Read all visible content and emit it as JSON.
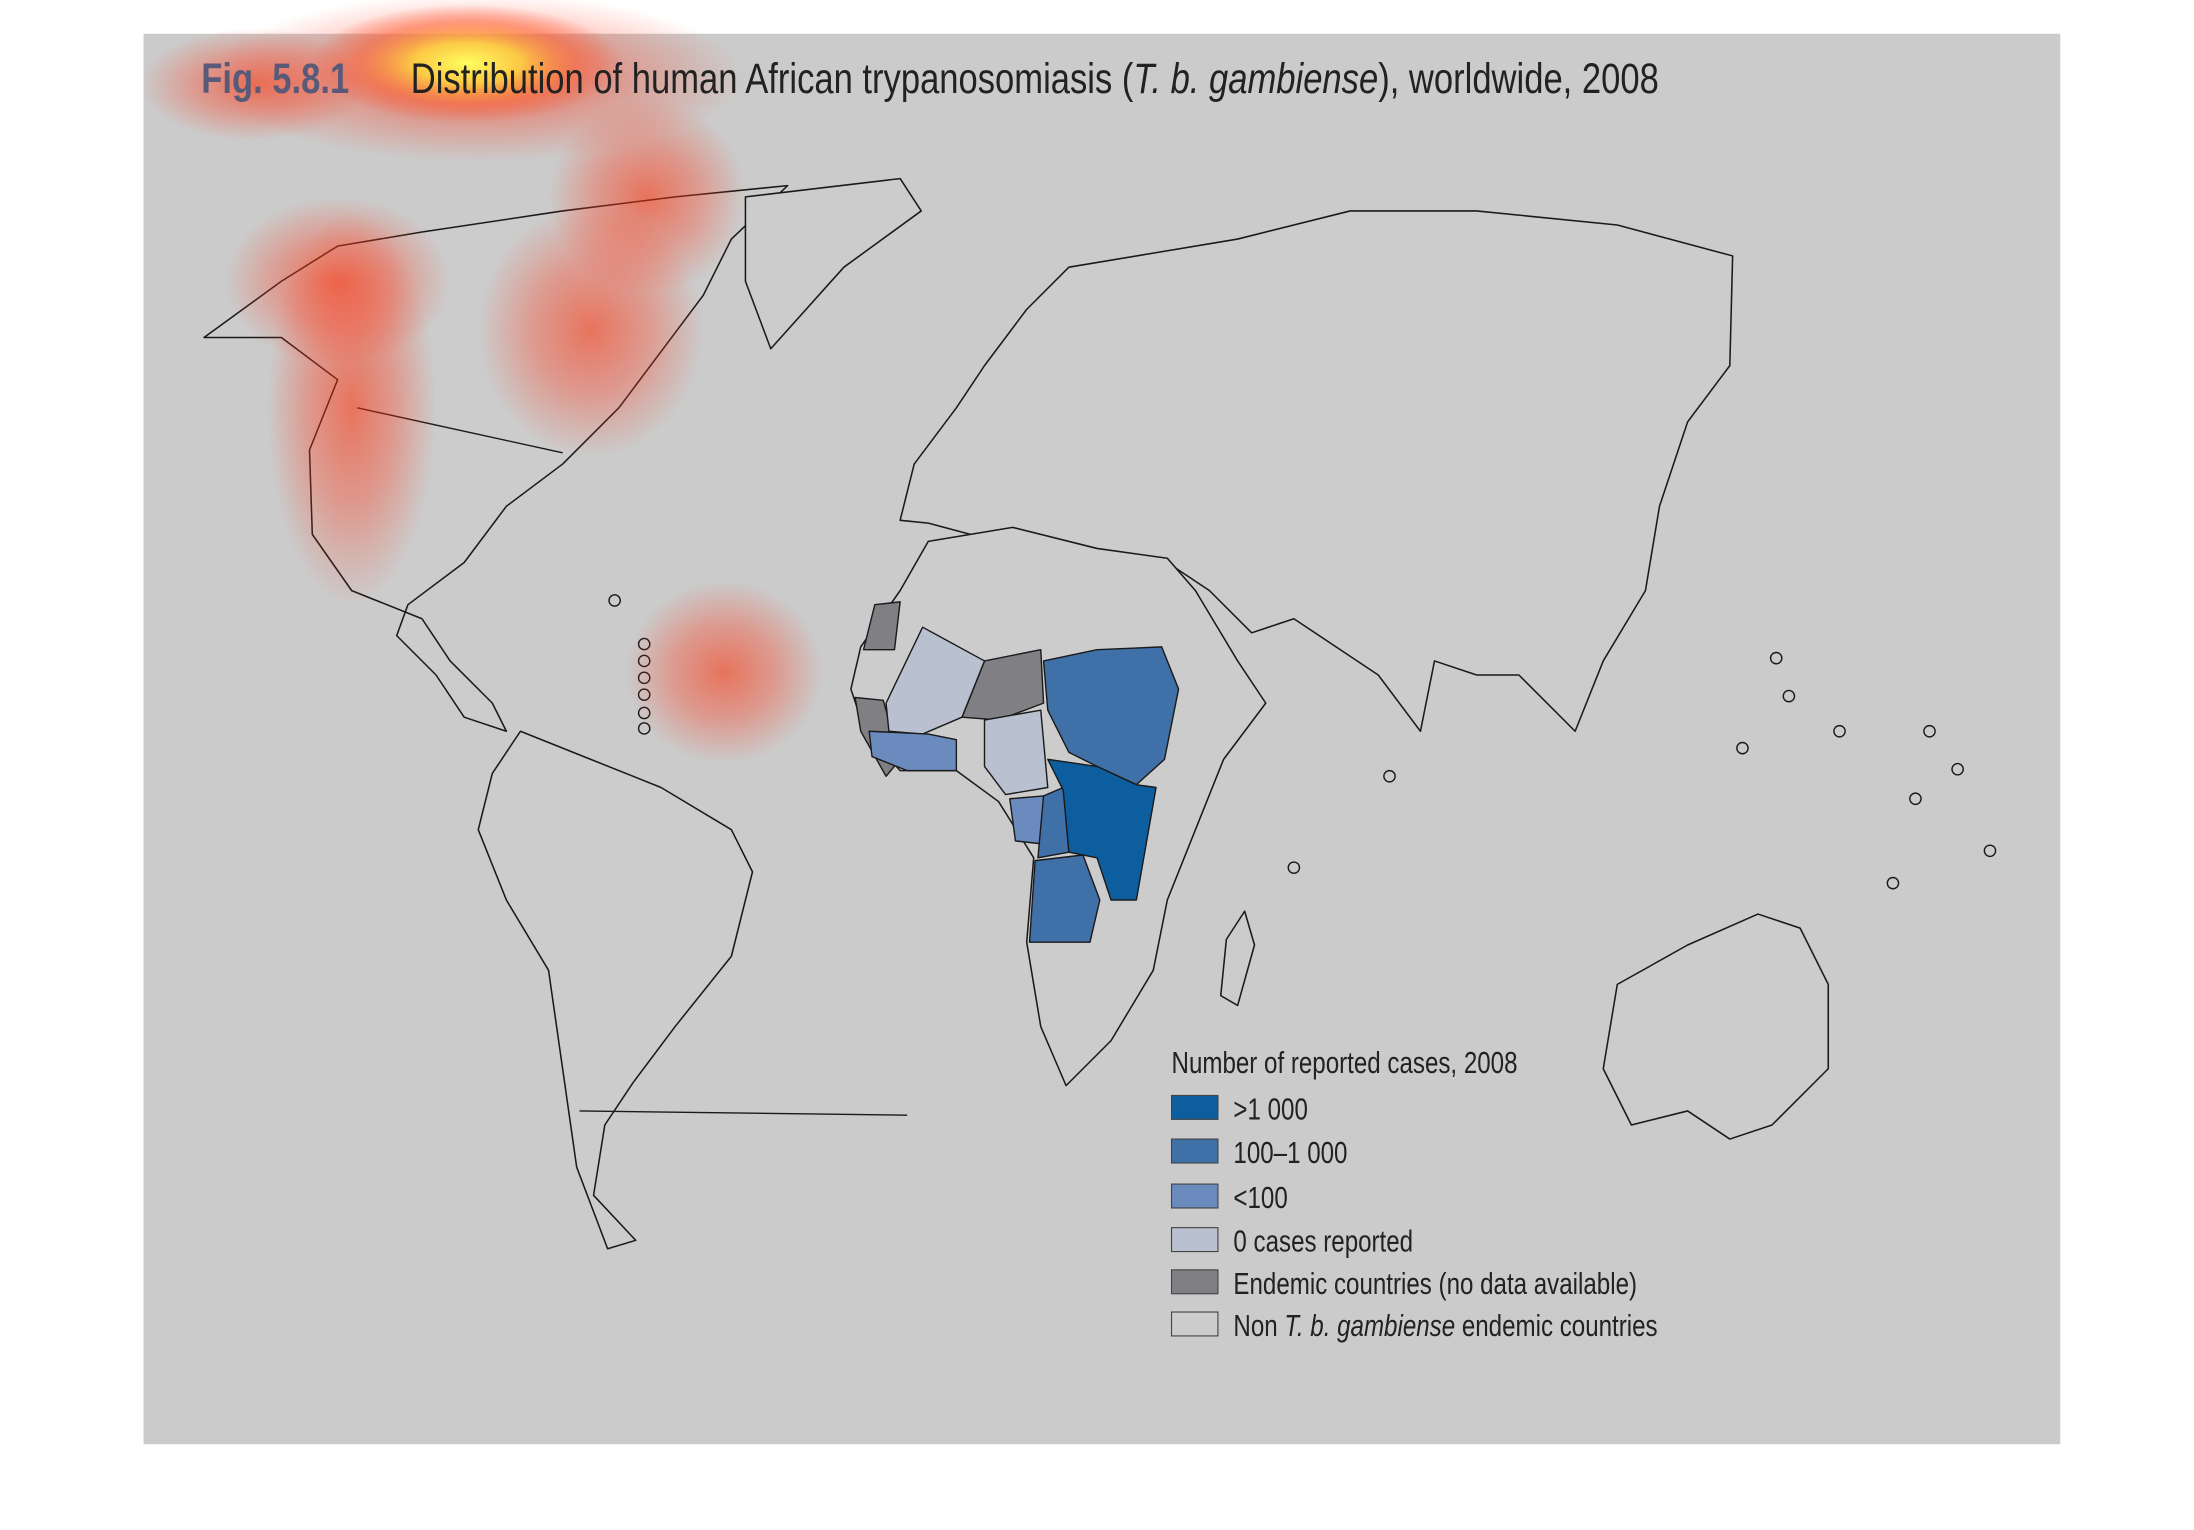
{
  "figure": {
    "label": "Fig. 5.8.1",
    "title_before": "Distribution of human African trypanosomiasis (",
    "title_italic": "T. b. gambiense",
    "title_after": "), worldwide, 2008"
  },
  "legend": {
    "title": "Number of reported cases, 2008",
    "items": [
      {
        "label": ">1 000",
        "color": "#0d5e9f"
      },
      {
        "label": "100–1 000",
        "color": "#3f70a8"
      },
      {
        "label": "<100",
        "color": "#6b8abd"
      },
      {
        "label": "0 cases reported",
        "color": "#b9c0cf"
      },
      {
        "label": "Endemic countries (no data available)",
        "color": "#808084"
      },
      {
        "label_before": "Non ",
        "label_italic": "T. b. gambiense",
        "label_after": " endemic countries",
        "color": "#cccccc"
      }
    ]
  }
}
